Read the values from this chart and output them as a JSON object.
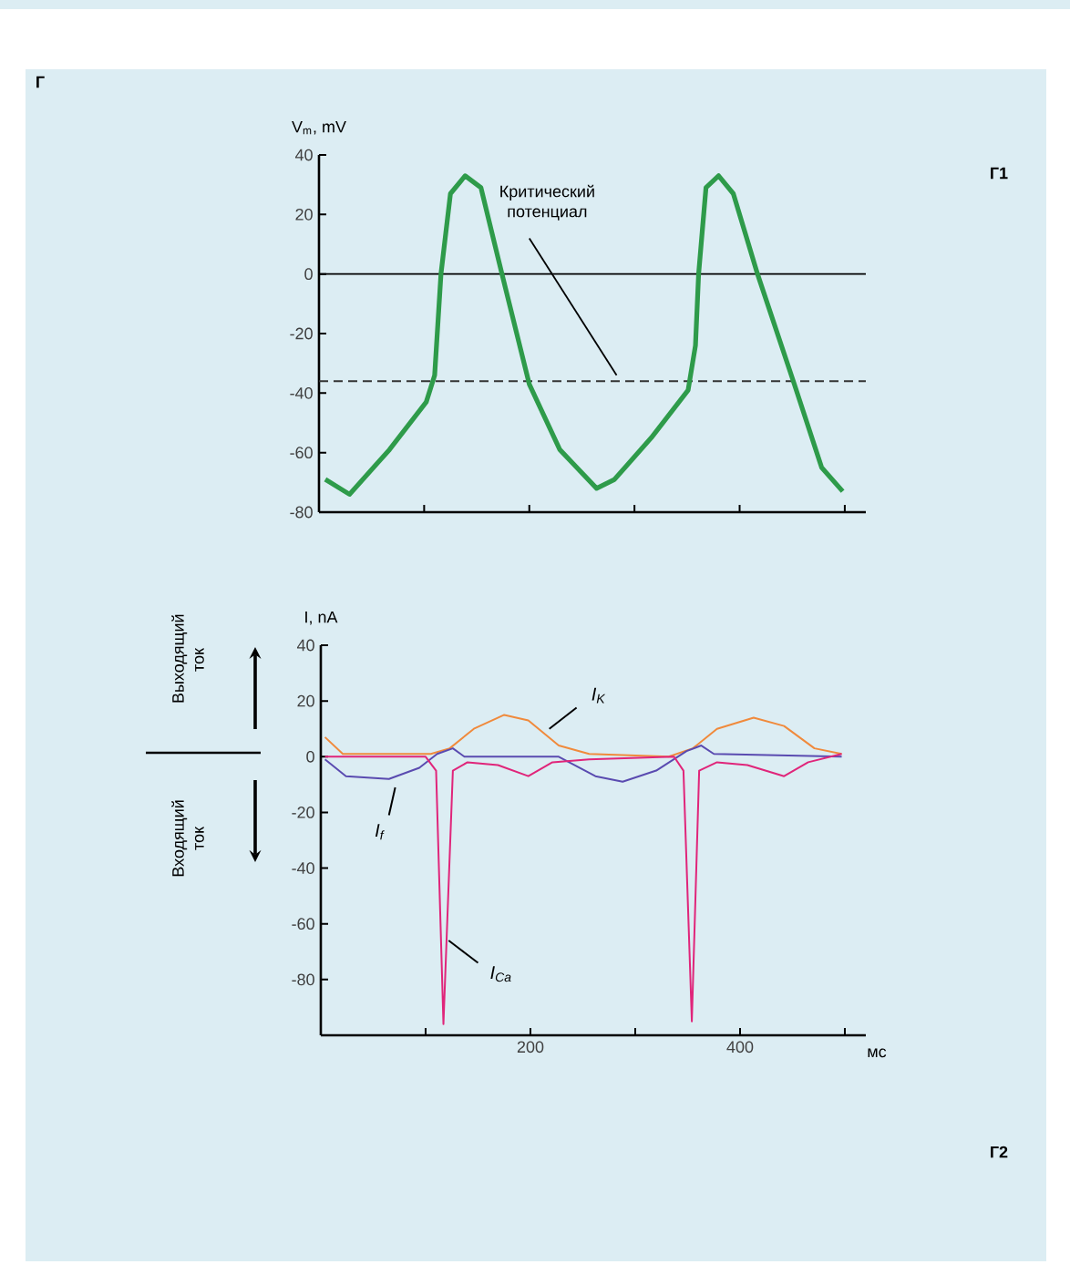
{
  "chart_data": [
    {
      "type": "line",
      "ylabel": "V$_{m}$, mV",
      "annotations": [
        "Г",
        "Г1",
        {
          "text": "Критический потенциал",
          "x": 283,
          "y": -36
        }
      ],
      "xlim": [
        0,
        520
      ],
      "ylim": [
        -80,
        40
      ],
      "xticks": [
        {
          "value": 100,
          "label": null
        },
        {
          "value": 200,
          "label": null
        },
        {
          "value": 300,
          "label": null
        },
        {
          "value": 400,
          "label": null
        },
        {
          "value": 500,
          "label": null
        }
      ],
      "yticks": [
        -80,
        -60,
        -40,
        -20,
        0,
        20,
        40
      ],
      "tick_labels": "y",
      "ref_lines": [
        {
          "axis": "y",
          "value": 0,
          "color": "#000000",
          "line_style": "solid"
        },
        {
          "axis": "y",
          "value": -36,
          "color": "#333333",
          "line_style": "dashed"
        }
      ],
      "series": [
        {
          "color": "#2e9b4a",
          "x": [
            6,
            29,
            67,
            102,
            110,
            116,
            125,
            139,
            154,
            174,
            200,
            229,
            264,
            281,
            316,
            351,
            358,
            361,
            368,
            380,
            394,
            417,
            452,
            478,
            498
          ],
          "values": [
            -69,
            -74,
            -59,
            -43,
            -34,
            0,
            27,
            33,
            29,
            0,
            -37,
            -59,
            -72,
            -69,
            -55,
            -39,
            -24,
            0,
            29,
            33,
            27,
            0,
            -37,
            -65,
            -73
          ]
        }
      ]
    },
    {
      "type": "line",
      "xlabel": "мс",
      "ylabel": "I, nA",
      "annotations": [
        "Выходящий ток",
        "Входящий ток",
        "Г2"
      ],
      "xlim": [
        0,
        520
      ],
      "ylim": [
        -100,
        40
      ],
      "xticks": [
        {
          "value": 100,
          "label": null
        },
        200,
        {
          "value": 300,
          "label": null
        },
        400,
        {
          "value": 500,
          "label": null
        }
      ],
      "yticks": [
        -80,
        -60,
        -40,
        -20,
        0,
        20,
        40
      ],
      "series": [
        {
          "name": "I$_{K}$",
          "color": "#f08a3c",
          "x": [
            4,
            21,
            105,
            123,
            146,
            175,
            198,
            227,
            256,
            332,
            355,
            378,
            413,
            442,
            471,
            497
          ],
          "values": [
            7,
            1,
            1,
            3,
            10,
            15,
            13,
            4,
            1,
            0,
            3,
            10,
            14,
            11,
            3,
            1
          ]
        },
        {
          "name": "I$_{f}$",
          "color": "#5a4bb0",
          "x": [
            4,
            24,
            65,
            94,
            111,
            126,
            137,
            227,
            262,
            288,
            320,
            349,
            363,
            375,
            497
          ],
          "values": [
            -1,
            -7,
            -8,
            -4,
            1,
            3,
            0,
            0,
            -7,
            -9,
            -5,
            2,
            4,
            1,
            0
          ]
        },
        {
          "name": "I$_{Ca}$",
          "color": "#e0257a",
          "x": [
            4,
            100,
            110,
            117,
            126,
            140,
            169,
            198,
            221,
            256,
            337,
            346,
            354,
            361,
            378,
            407,
            442,
            465,
            497
          ],
          "values": [
            0,
            0,
            -5,
            -96,
            -5,
            -2,
            -3,
            -7,
            -2,
            -1,
            0,
            -5,
            -95,
            -5,
            -2,
            -3,
            -7,
            -2,
            1
          ]
        }
      ]
    }
  ]
}
